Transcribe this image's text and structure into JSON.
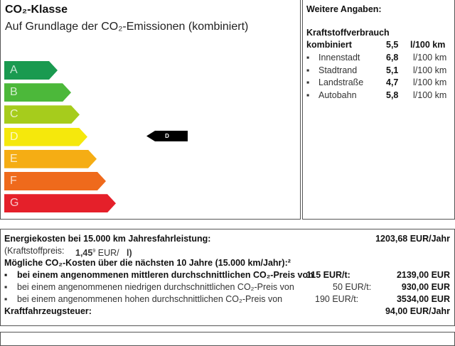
{
  "co2": {
    "title": "CO₂-Klasse",
    "subtitle": "Auf Grundlage der CO₂-Emissionen (kombiniert)",
    "classes": [
      {
        "label": "A",
        "color": "#1a9a50"
      },
      {
        "label": "B",
        "color": "#4cb83a"
      },
      {
        "label": "C",
        "color": "#a6cc1c"
      },
      {
        "label": "D",
        "color": "#f5e80c"
      },
      {
        "label": "E",
        "color": "#f5ad14"
      },
      {
        "label": "F",
        "color": "#ef6a1c"
      },
      {
        "label": "G",
        "color": "#e5202a"
      }
    ],
    "current_class": "D"
  },
  "weitere": {
    "title": "Weitere Angaben:",
    "heading": "Kraftstoffverbrauch",
    "combined": {
      "label": "kombiniert",
      "value": "5,5",
      "unit": "l/100 km"
    },
    "items": [
      {
        "label": "Innenstadt",
        "value": "6,8",
        "unit": "l/100 km"
      },
      {
        "label": "Stadtrand",
        "value": "5,1",
        "unit": "l/100 km"
      },
      {
        "label": "Landstraße",
        "value": "4,7",
        "unit": "l/100 km"
      },
      {
        "label": "Autobahn",
        "value": "5,8",
        "unit": "l/100 km"
      }
    ]
  },
  "costs": {
    "energy_label": "Energiekosten bei 15.000 km Jahresfahrleistung:",
    "energy_value": "1203,68 EUR/Jahr",
    "fuel_price_label": "(Kraftstoffpreis:",
    "fuel_price_value": "1,45",
    "fuel_price_sup": "9",
    "fuel_price_unit": "EUR/",
    "fuel_price_end": "l)",
    "co2_heading": "Mögliche CO₂-Kosten über die nächsten 10 Jahre (15.000 km/Jahr):²",
    "scenarios": [
      {
        "text": "bei einem angenommenen mittleren durchschnittlichen CO₂-Preis von",
        "price": "115  EUR/t:",
        "value": "2139,00 EUR"
      },
      {
        "text": "bei einem angenommenen niedrigen durchschnittlichen CO₂-Preis von",
        "price": "50  EUR/t:",
        "value": "930,00 EUR"
      },
      {
        "text": "bei einem angenommenen hohen durchschnittlichen CO₂-Preis von",
        "price": "190  EUR/t:",
        "value": "3534,00 EUR"
      }
    ],
    "tax_label": "Kraftfahrzeugsteuer:",
    "tax_value": "94,00 EUR/Jahr"
  }
}
